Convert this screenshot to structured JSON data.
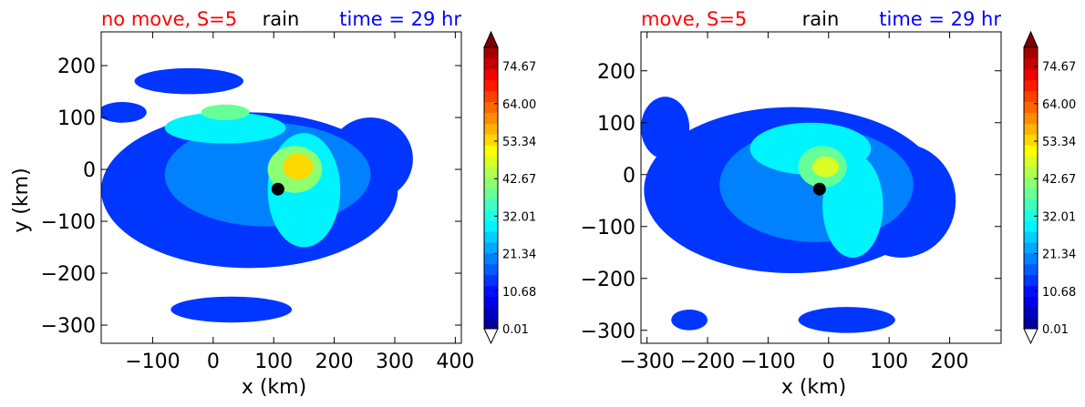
{
  "chart_data": [
    {
      "type": "heatmap",
      "title_left": "no move, S=5",
      "title_center": "rain",
      "title_right": "time = 29 hr",
      "title_left_color": "#ff0000",
      "title_center_color": "#000000",
      "title_right_color": "#0000ff",
      "xlabel": "x (km)",
      "ylabel": "y (km)",
      "xlim": [
        -185,
        410
      ],
      "ylim": [
        -335,
        265
      ],
      "xticks": [
        -100,
        0,
        100,
        200,
        300,
        400
      ],
      "xtick_labels": [
        "−100",
        "0",
        "100",
        "200",
        "300",
        "400"
      ],
      "yticks": [
        200,
        100,
        0,
        -100,
        -200,
        -300
      ],
      "ytick_labels": [
        "200",
        "100",
        "0",
        "−100",
        "−200",
        "−300"
      ],
      "storm_center": [
        107,
        -38
      ],
      "rain_blobs": [
        {
          "cx": 60,
          "cy": -40,
          "rx": 245,
          "ry": 150,
          "level": 4
        },
        {
          "cx": -40,
          "cy": 170,
          "rx": 90,
          "ry": 25,
          "level": 4
        },
        {
          "cx": 30,
          "cy": -270,
          "rx": 100,
          "ry": 25,
          "level": 4
        },
        {
          "cx": 260,
          "cy": 20,
          "rx": 70,
          "ry": 80,
          "level": 4
        },
        {
          "cx": -150,
          "cy": 110,
          "rx": 40,
          "ry": 20,
          "level": 4
        },
        {
          "cx": 90,
          "cy": -10,
          "rx": 170,
          "ry": 100,
          "level": 6
        },
        {
          "cx": 20,
          "cy": 80,
          "rx": 100,
          "ry": 30,
          "level": 9
        },
        {
          "cx": 150,
          "cy": -40,
          "rx": 60,
          "ry": 110,
          "level": 9
        },
        {
          "cx": 20,
          "cy": 110,
          "rx": 40,
          "ry": 15,
          "level": 12
        },
        {
          "cx": 135,
          "cy": 0,
          "rx": 45,
          "ry": 45,
          "level": 13
        },
        {
          "cx": 140,
          "cy": 5,
          "rx": 25,
          "ry": 25,
          "level": 17
        }
      ],
      "colorbar": {
        "ticks": [
          "74.67",
          "64.00",
          "53.34",
          "42.67",
          "32.01",
          "21.34",
          "10.68",
          "0.01"
        ],
        "min": 0.01,
        "max": 80.0,
        "extend": "both"
      }
    },
    {
      "type": "heatmap",
      "title_left": "move, S=5",
      "title_center": "rain",
      "title_right": "time = 29 hr",
      "title_left_color": "#ff0000",
      "title_center_color": "#000000",
      "title_right_color": "#0000ff",
      "xlabel": "x (km)",
      "ylabel": "",
      "xlim": [
        -310,
        285
      ],
      "ylim": [
        -325,
        275
      ],
      "xticks": [
        -300,
        -200,
        -100,
        0,
        100,
        200
      ],
      "xtick_labels": [
        "−300",
        "−200",
        "−100",
        "0",
        "100",
        "200"
      ],
      "yticks": [
        200,
        100,
        0,
        -100,
        -200,
        -300
      ],
      "ytick_labels": [
        "200",
        "100",
        "0",
        "−100",
        "−200",
        "−300"
      ],
      "storm_center": [
        -15,
        -28
      ],
      "rain_blobs": [
        {
          "cx": -60,
          "cy": -30,
          "rx": 245,
          "ry": 160,
          "level": 4
        },
        {
          "cx": -270,
          "cy": 90,
          "rx": 40,
          "ry": 60,
          "level": 4
        },
        {
          "cx": 30,
          "cy": -280,
          "rx": 80,
          "ry": 25,
          "level": 4
        },
        {
          "cx": 120,
          "cy": -50,
          "rx": 90,
          "ry": 110,
          "level": 4
        },
        {
          "cx": -230,
          "cy": -280,
          "rx": 30,
          "ry": 20,
          "level": 4
        },
        {
          "cx": -20,
          "cy": -20,
          "rx": 160,
          "ry": 110,
          "level": 6
        },
        {
          "cx": -30,
          "cy": 50,
          "rx": 100,
          "ry": 50,
          "level": 9
        },
        {
          "cx": 40,
          "cy": -60,
          "rx": 50,
          "ry": 100,
          "level": 9
        },
        {
          "cx": -10,
          "cy": 15,
          "rx": 40,
          "ry": 40,
          "level": 12
        },
        {
          "cx": -5,
          "cy": 15,
          "rx": 22,
          "ry": 20,
          "level": 15
        }
      ],
      "colorbar": {
        "ticks": [
          "74.67",
          "64.00",
          "53.34",
          "42.67",
          "32.01",
          "21.34",
          "10.68",
          "0.01"
        ],
        "min": 0.01,
        "max": 80.0,
        "extend": "both"
      }
    }
  ]
}
